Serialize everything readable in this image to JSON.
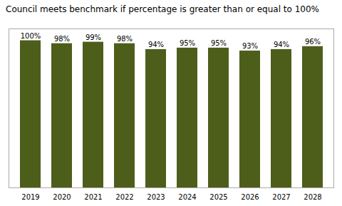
{
  "chart_data": {
    "type": "bar",
    "title": "Council meets benchmark if percentage is greater than or equal to 100%",
    "categories": [
      "2019",
      "2020",
      "2021",
      "2022",
      "2023",
      "2024",
      "2025",
      "2026",
      "2027",
      "2028"
    ],
    "values": [
      100,
      98,
      99,
      98,
      94,
      95,
      95,
      93,
      94,
      96
    ],
    "value_labels": [
      "100%",
      "98%",
      "99%",
      "98%",
      "94%",
      "95%",
      "95%",
      "93%",
      "94%",
      "96%"
    ],
    "color": "#4d5e1a",
    "ylim": [
      0,
      108
    ],
    "data_labels": true,
    "tick_labels": "x",
    "grid": false
  }
}
